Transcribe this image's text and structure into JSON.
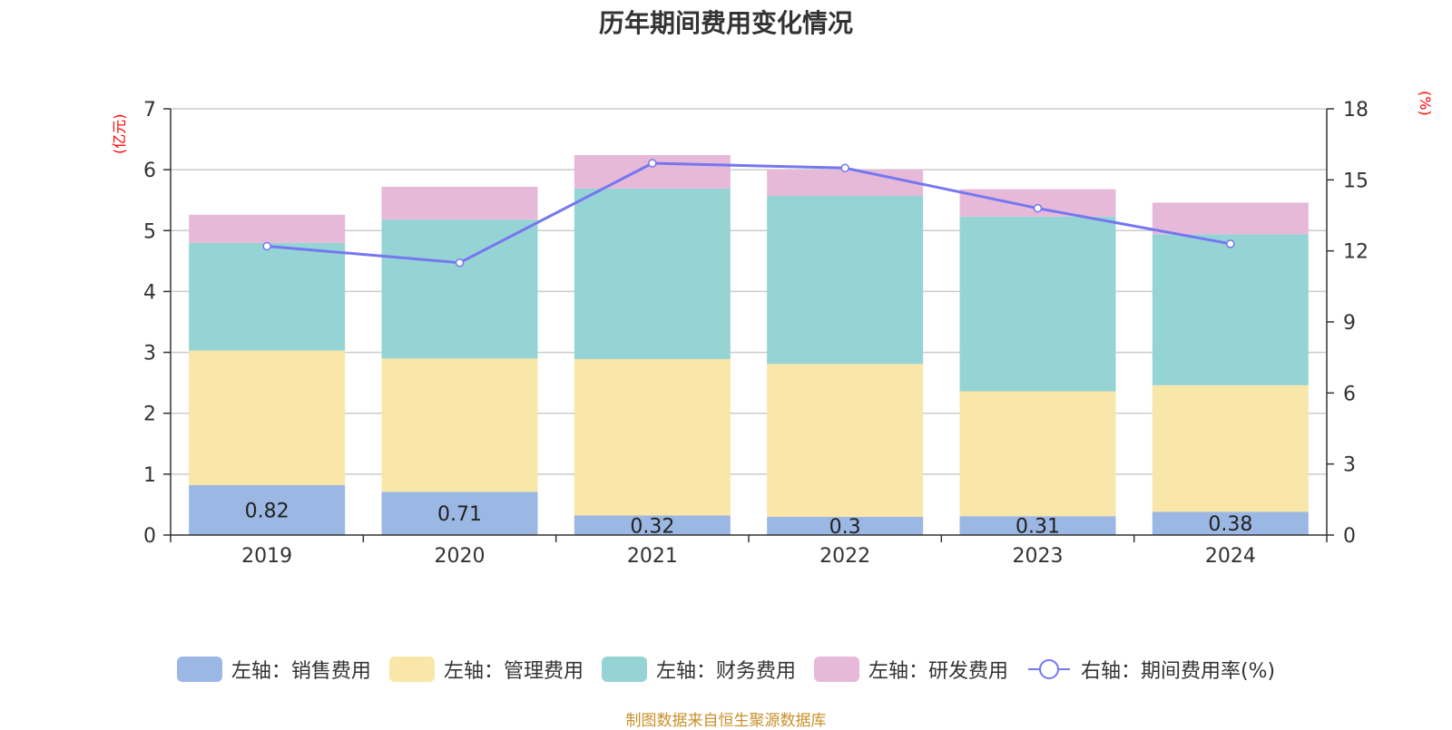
{
  "chart_data": {
    "type": "bar",
    "stacked": true,
    "title": "历年期间费用变化情况",
    "categories": [
      "2019",
      "2020",
      "2021",
      "2022",
      "2023",
      "2024"
    ],
    "ylabel_left": "(亿元)",
    "ylabel_right": "(%)",
    "ylim_left": [
      0,
      7
    ],
    "ylim_right": [
      0,
      18
    ],
    "yticks_left": [
      "0",
      "1",
      "2",
      "3",
      "4",
      "5",
      "6",
      "7"
    ],
    "yticks_right": [
      "0",
      "3",
      "6",
      "9",
      "12",
      "15",
      "18"
    ],
    "series": [
      {
        "name": "左轴：销售费用",
        "axis": "left",
        "color": "#9bb7e3",
        "values": [
          0.82,
          0.71,
          0.32,
          0.3,
          0.31,
          0.38
        ],
        "labels": [
          "0.82",
          "0.71",
          "0.32",
          "0.3",
          "0.31",
          "0.38"
        ]
      },
      {
        "name": "左轴：管理费用",
        "axis": "left",
        "color": "#f8e7a8",
        "values": [
          2.21,
          2.19,
          2.57,
          2.51,
          2.05,
          2.08
        ]
      },
      {
        "name": "左轴：财务费用",
        "axis": "left",
        "color": "#96d3d4",
        "values": [
          1.77,
          2.28,
          2.8,
          2.76,
          2.87,
          2.48
        ]
      },
      {
        "name": "左轴：研发费用",
        "axis": "left",
        "color": "#e6b9d9",
        "values": [
          0.46,
          0.54,
          0.55,
          0.43,
          0.45,
          0.52
        ]
      },
      {
        "name": "右轴：期间费用率(%)",
        "axis": "right",
        "type": "line",
        "color": "#7577f0",
        "values": [
          12.2,
          11.5,
          15.7,
          15.5,
          13.8,
          12.3
        ]
      }
    ],
    "legend_position": "bottom",
    "grid": true
  },
  "source_note": "制图数据来自恒生聚源数据库"
}
